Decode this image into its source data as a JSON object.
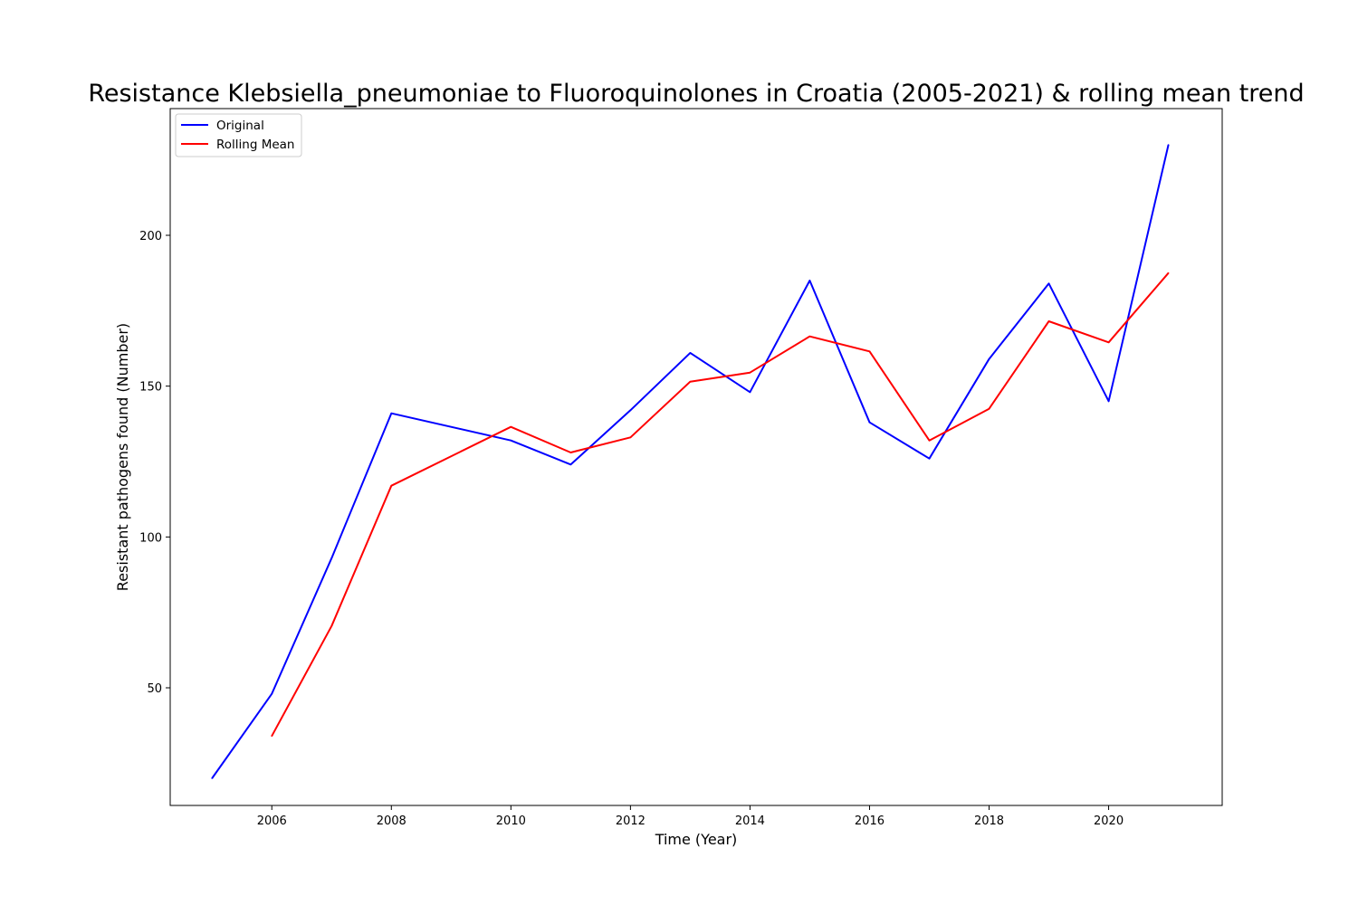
{
  "chart_data": {
    "type": "line",
    "title": "Resistance Klebsiella_pneumoniae to Fluoroquinolones in Croatia (2005-2021) & rolling mean trend",
    "xlabel": "Time (Year)",
    "ylabel": "Resistant pathogens found (Number)",
    "xlim": [
      2004.3,
      2021.9
    ],
    "ylim": [
      11,
      242
    ],
    "x_ticks": [
      2006,
      2008,
      2010,
      2012,
      2014,
      2016,
      2018,
      2020
    ],
    "y_ticks": [
      50,
      100,
      150,
      200
    ],
    "grid": false,
    "legend_position": "upper-left",
    "series": [
      {
        "name": "Original",
        "color": "#0000ff",
        "x": [
          2005,
          2006,
          2007,
          2008,
          2010,
          2011,
          2012,
          2013,
          2014,
          2015,
          2016,
          2017,
          2018,
          2019,
          2020,
          2021
        ],
        "y": [
          20,
          48,
          93,
          141,
          132,
          124,
          142,
          161,
          148,
          185,
          138,
          126,
          159,
          184,
          145,
          230
        ]
      },
      {
        "name": "Rolling Mean",
        "color": "#ff0000",
        "x": [
          2006,
          2007,
          2008,
          2010,
          2011,
          2012,
          2013,
          2014,
          2015,
          2016,
          2017,
          2018,
          2019,
          2020,
          2021
        ],
        "y": [
          34,
          70.5,
          117,
          136.5,
          128,
          133,
          151.5,
          154.5,
          166.5,
          161.5,
          132,
          142.5,
          171.5,
          164.5,
          187.5
        ]
      }
    ]
  }
}
